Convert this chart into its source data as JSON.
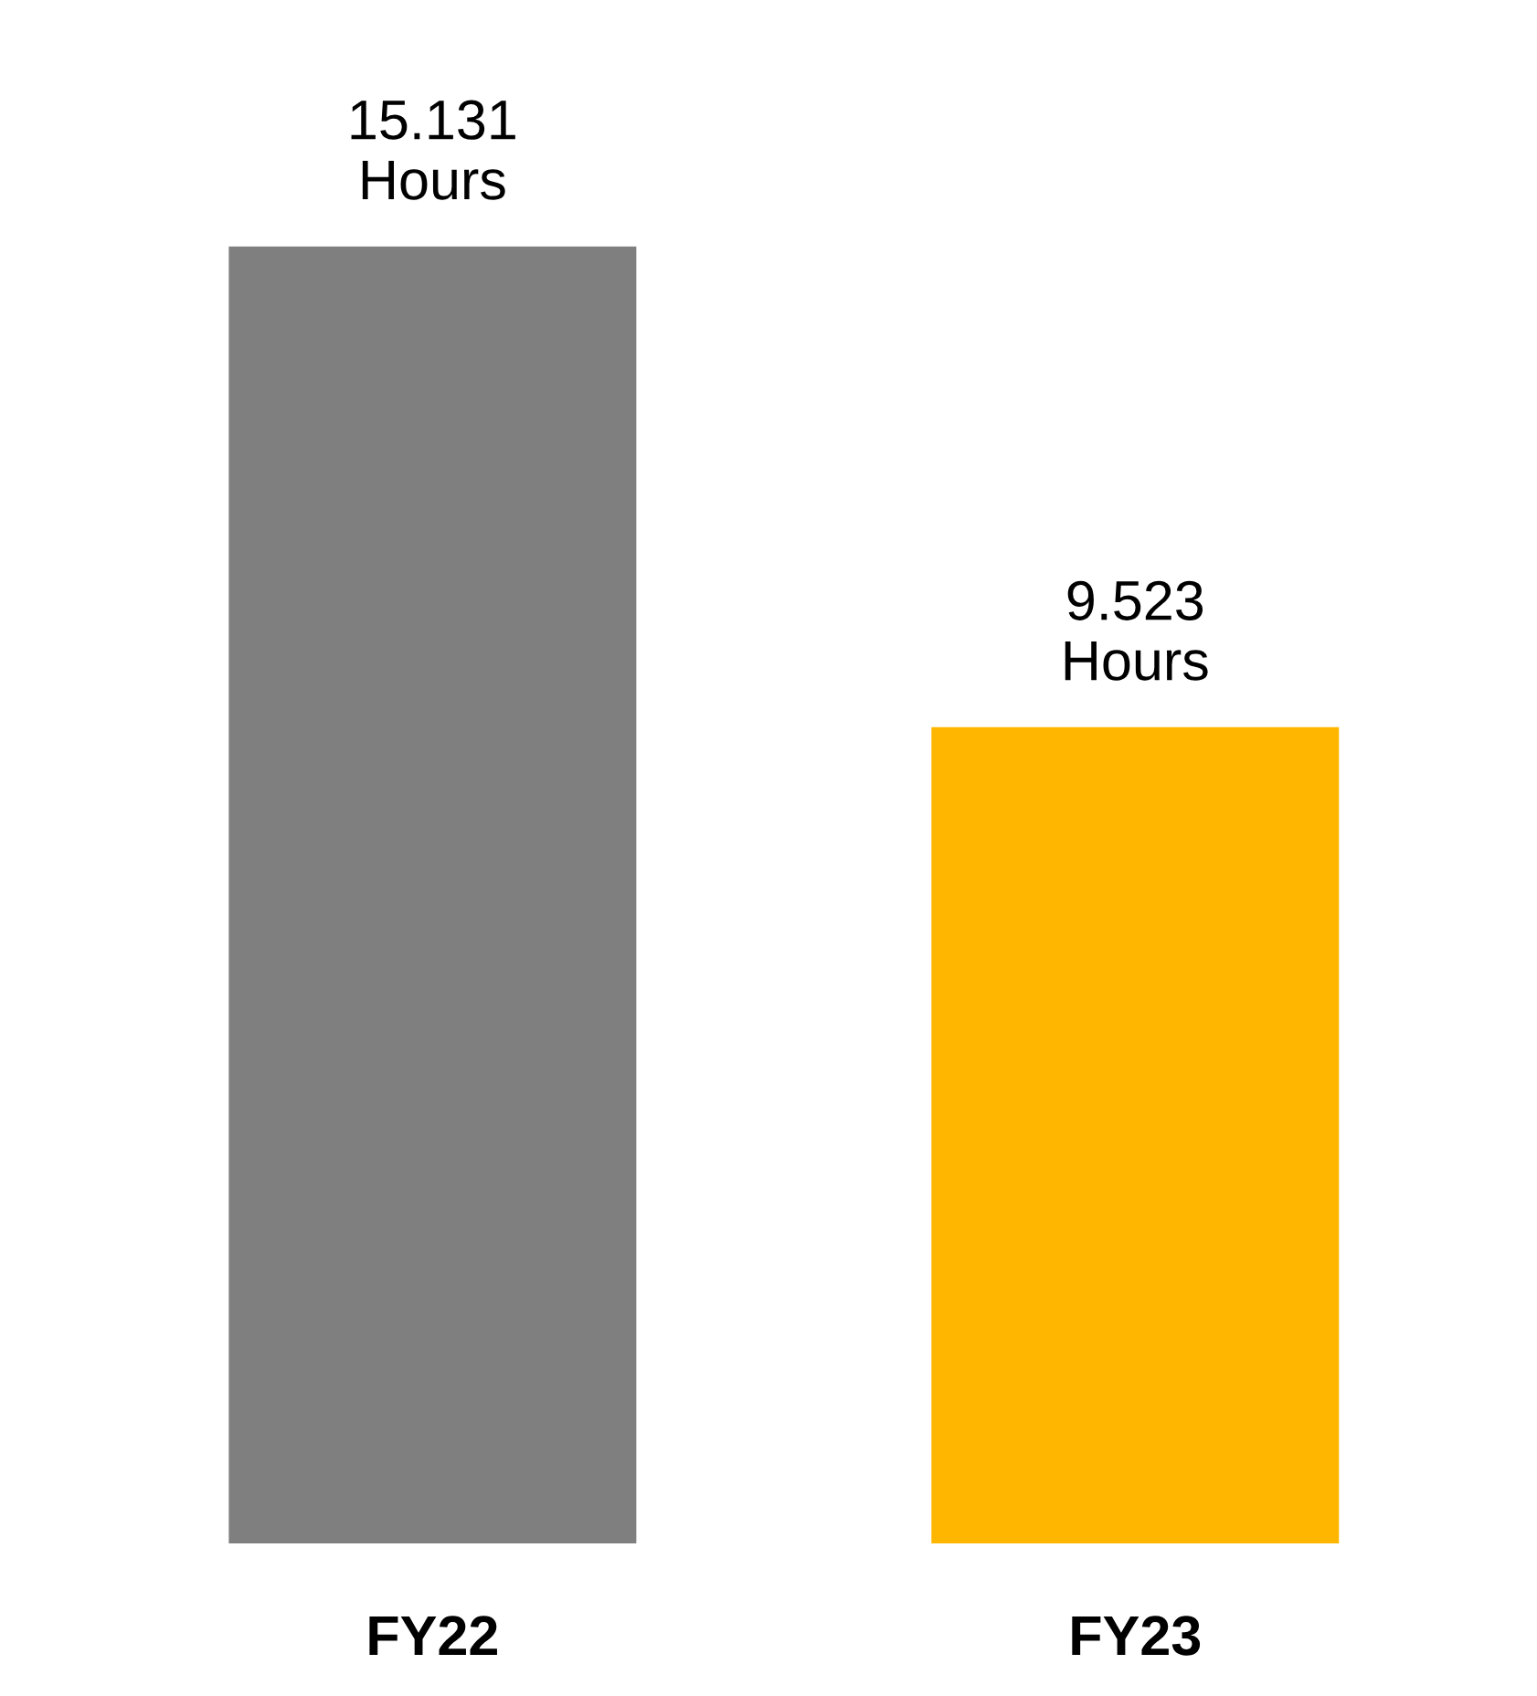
{
  "chart_data": {
    "type": "bar",
    "categories": [
      "FY22",
      "FY23"
    ],
    "values": [
      15.131,
      9.523
    ],
    "colors": [
      "#7f7f7f",
      "#ffb600"
    ],
    "value_labels": [
      "15.131\nHours",
      "9.523\nHours"
    ],
    "grid": false,
    "legend": false
  }
}
